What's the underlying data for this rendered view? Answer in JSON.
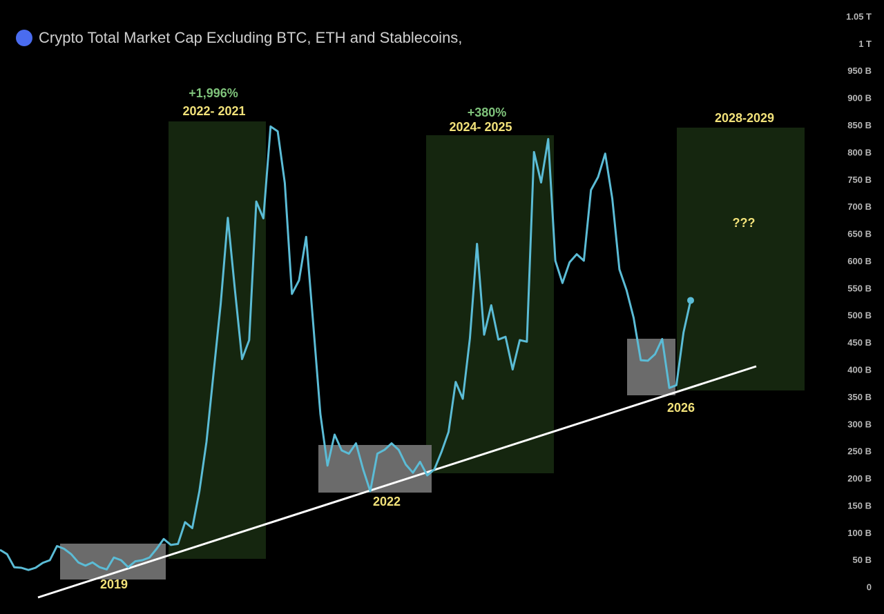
{
  "chart_data": {
    "type": "line",
    "title": "Crypto Total Market Cap Excluding BTC, ETH and Stablecoins,",
    "annotations": [
      "+1,996%",
      "2022- 2021",
      "+380%",
      "2024- 2025",
      "2028-2029",
      "???",
      "2019",
      "2022",
      "2026"
    ],
    "color": "#5bbcd6",
    "values": [
      70,
      62,
      38,
      37,
      33,
      37,
      46,
      51,
      77,
      72,
      62,
      47,
      41,
      47,
      38,
      34,
      56,
      51,
      38,
      49,
      51,
      56,
      72,
      90,
      79,
      81,
      121,
      110,
      178,
      269,
      396,
      523,
      681,
      548,
      421,
      456,
      711,
      680,
      849,
      840,
      745,
      541,
      566,
      646,
      485,
      320,
      225,
      282,
      253,
      247,
      266,
      218,
      178,
      247,
      254,
      266,
      254,
      227,
      212,
      232,
      207,
      218,
      250,
      287,
      379,
      348,
      459,
      633,
      466,
      520,
      457,
      462,
      402,
      456,
      453,
      802,
      746,
      826,
      602,
      561,
      599,
      614,
      602,
      732,
      756,
      799,
      716,
      586,
      548,
      497,
      419,
      418,
      430,
      458,
      368,
      373,
      470,
      529
    ],
    "ylim": [
      -48,
      1050
    ],
    "yticks": [
      0,
      {
        "value": 50,
        "label": "50 B"
      },
      {
        "value": 100,
        "label": "100 B"
      },
      {
        "value": 150,
        "label": "150 B"
      },
      {
        "value": 200,
        "label": "200 B"
      },
      {
        "value": 250,
        "label": "250 B"
      },
      {
        "value": 300,
        "label": "300 B"
      },
      {
        "value": 350,
        "label": "350 B"
      },
      {
        "value": 400,
        "label": "400 B"
      },
      {
        "value": 450,
        "label": "450 B"
      },
      {
        "value": 500,
        "label": "500 B"
      },
      {
        "value": 550,
        "label": "550 B"
      },
      {
        "value": 600,
        "label": "600 B"
      },
      {
        "value": 650,
        "label": "650 B"
      },
      {
        "value": 700,
        "label": "700 B"
      },
      {
        "value": 750,
        "label": "750 B"
      },
      {
        "value": 800,
        "label": "800 B"
      },
      {
        "value": 850,
        "label": "850 B"
      },
      {
        "value": 900,
        "label": "900 B"
      },
      {
        "value": 950,
        "label": "950 B"
      },
      {
        "value": 1000,
        "label": "1 T"
      },
      {
        "value": 1050,
        "label": "1.05 T"
      }
    ]
  }
}
